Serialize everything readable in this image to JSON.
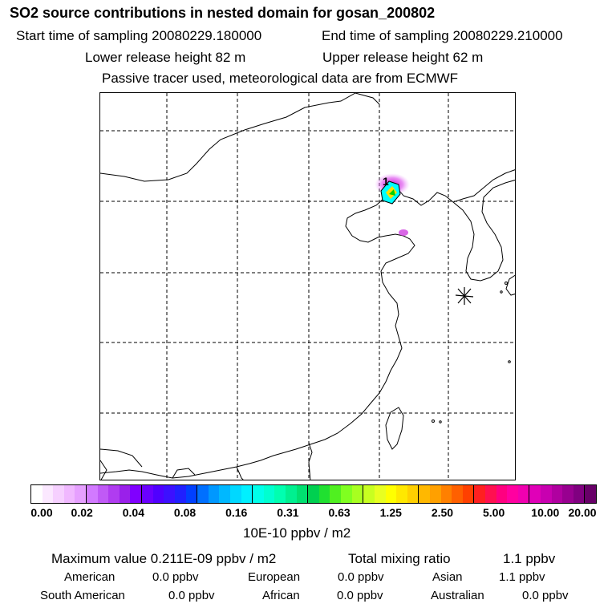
{
  "header": {
    "title": "SO2 source contributions in nested domain for gosan_200802",
    "start_time": "Start time of sampling 20080229.180000",
    "end_time": "End time of sampling 20080229.210000",
    "lower_height": "Lower release height   82 m",
    "upper_height": "Upper release height   62 m",
    "tracer_note": "Passive tracer used, meteorological data are from ECMWF"
  },
  "map": {
    "source_label": "1",
    "receptor_icon": "asterisk-icon",
    "plume_colors": [
      "#e000e0",
      "#ff00ff",
      "#00ffff",
      "#ffff00",
      "#00e000"
    ]
  },
  "colorbar": {
    "tick_labels": [
      "0.00",
      "0.02",
      "0.04",
      "0.08",
      "0.16",
      "0.31",
      "0.63",
      "1.25",
      "2.50",
      "5.00",
      "10.00",
      "20.00"
    ],
    "units": "10E-10 ppbv / m2",
    "colors": [
      "#ffffff",
      "#fbe8ff",
      "#f6d0ff",
      "#f0b8ff",
      "#e6a0ff",
      "#d27aff",
      "#c05af6",
      "#b03cf0",
      "#9a20ea",
      "#8000ff",
      "#6a00ff",
      "#5000ff",
      "#3c10ff",
      "#2020ff",
      "#0040ff",
      "#0070ff",
      "#0098ff",
      "#00b8ff",
      "#00d8ff",
      "#00f0ff",
      "#00ffea",
      "#00ffd0",
      "#00ffb0",
      "#00f090",
      "#00e070",
      "#00d050",
      "#20e030",
      "#50f020",
      "#80ff20",
      "#a8ff20",
      "#c8ff20",
      "#e8ff20",
      "#ffff00",
      "#ffe800",
      "#ffd000",
      "#ffb800",
      "#ffa000",
      "#ff8000",
      "#ff6000",
      "#ff4000",
      "#ff2020",
      "#ff1050",
      "#ff0080",
      "#ff00a0",
      "#f000b0",
      "#e000b8",
      "#c800b0",
      "#b000a0",
      "#980090",
      "#800080",
      "#680068"
    ]
  },
  "summary": {
    "max_value": "Maximum value  0.211E-09 ppbv / m2",
    "total_label": "Total mixing ratio",
    "total_value": "1.1 ppbv",
    "regions": [
      {
        "name": "American",
        "value": "0.0 ppbv"
      },
      {
        "name": "European",
        "value": "0.0 ppbv"
      },
      {
        "name": "Asian",
        "value": "1.1 ppbv"
      },
      {
        "name": "South American",
        "value": "0.0 ppbv"
      },
      {
        "name": "African",
        "value": "0.0 ppbv"
      },
      {
        "name": "Australian",
        "value": "0.0 ppbv"
      }
    ]
  }
}
